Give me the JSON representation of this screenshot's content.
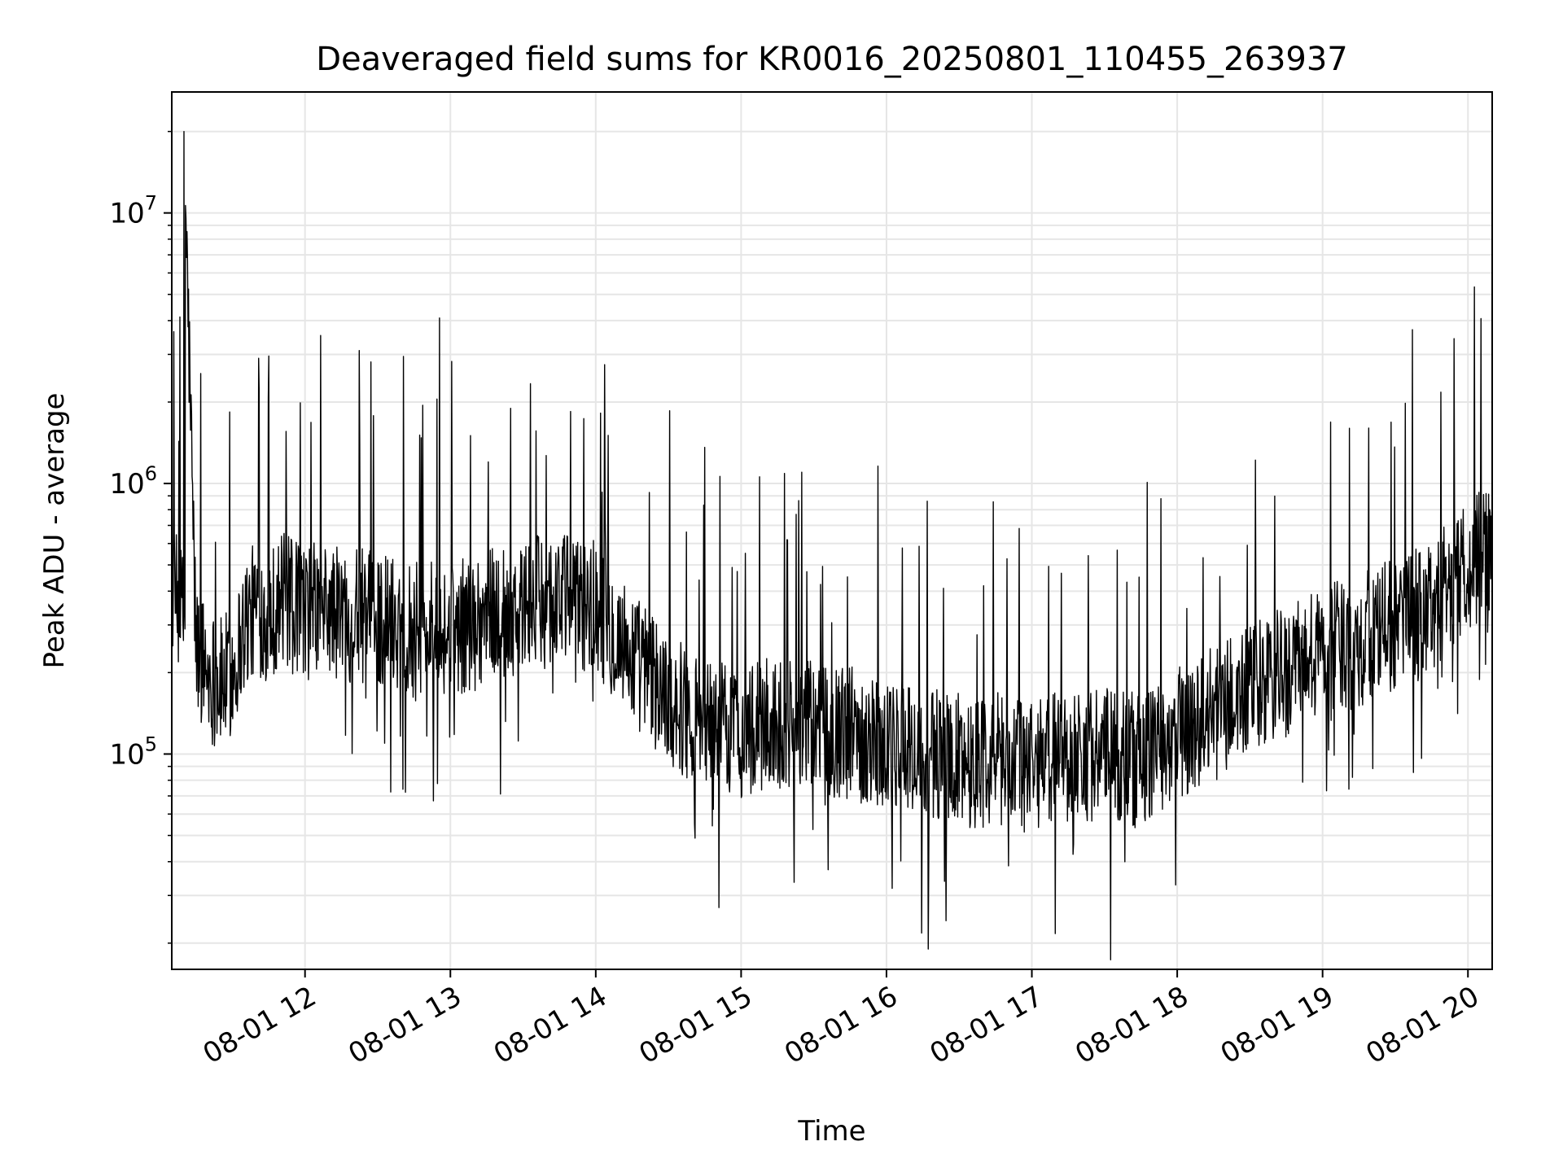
{
  "chart_data": {
    "type": "line",
    "title": "Deaveraged field sums for KR0016_20250801_110455_263937",
    "xlabel": "Time",
    "ylabel": "Peak ADU - average",
    "yscale": "log",
    "ylim": [
      16000,
      28000000
    ],
    "xlim": [
      "08-01 11:05",
      "08-01 20:10"
    ],
    "grid": true,
    "legend": "none",
    "colors": {
      "line": "#000000",
      "grid": "#e6e6e6",
      "axes": "#000000",
      "background": "#ffffff"
    },
    "x_ticks": [
      "08-01 12",
      "08-01 13",
      "08-01 14",
      "08-01 15",
      "08-01 16",
      "08-01 17",
      "08-01 18",
      "08-01 19",
      "08-01 20"
    ],
    "y_ticks": [
      {
        "value": 100000,
        "base": "10",
        "exp": "5"
      },
      {
        "value": 1000000,
        "base": "10",
        "exp": "6"
      },
      {
        "value": 10000000,
        "base": "10",
        "exp": "7"
      }
    ],
    "series": [
      {
        "x": [
          "08-01 11:05",
          "08-01 11:10",
          "08-01 11:15",
          "08-01 11:20",
          "08-01 11:25",
          "08-01 11:30",
          "08-01 11:35",
          "08-01 11:40",
          "08-01 11:45",
          "08-01 11:50",
          "08-01 11:55",
          "08-01 12:00",
          "08-01 12:15",
          "08-01 12:30",
          "08-01 12:45",
          "08-01 13:00",
          "08-01 13:15",
          "08-01 13:30",
          "08-01 13:45",
          "08-01 14:00",
          "08-01 14:15",
          "08-01 14:30",
          "08-01 14:45",
          "08-01 15:00",
          "08-01 15:15",
          "08-01 15:30",
          "08-01 15:45",
          "08-01 16:00",
          "08-01 16:15",
          "08-01 16:30",
          "08-01 16:45",
          "08-01 17:00",
          "08-01 17:15",
          "08-01 17:30",
          "08-01 17:45",
          "08-01 18:00",
          "08-01 18:15",
          "08-01 18:30",
          "08-01 18:45",
          "08-01 19:00",
          "08-01 19:15",
          "08-01 19:30",
          "08-01 19:45",
          "08-01 20:00",
          "08-01 20:10"
        ],
        "y": [
          400000,
          20000000,
          250000,
          200000,
          180000,
          200000,
          300000,
          350000,
          320000,
          380000,
          350000,
          350000,
          330000,
          320000,
          300000,
          280000,
          330000,
          350000,
          380000,
          350000,
          230000,
          160000,
          130000,
          120000,
          130000,
          125000,
          120000,
          110000,
          100000,
          95000,
          95000,
          95000,
          100000,
          100000,
          95000,
          120000,
          140000,
          170000,
          200000,
          240000,
          260000,
          300000,
          350000,
          500000,
          600000
        ]
      }
    ]
  }
}
